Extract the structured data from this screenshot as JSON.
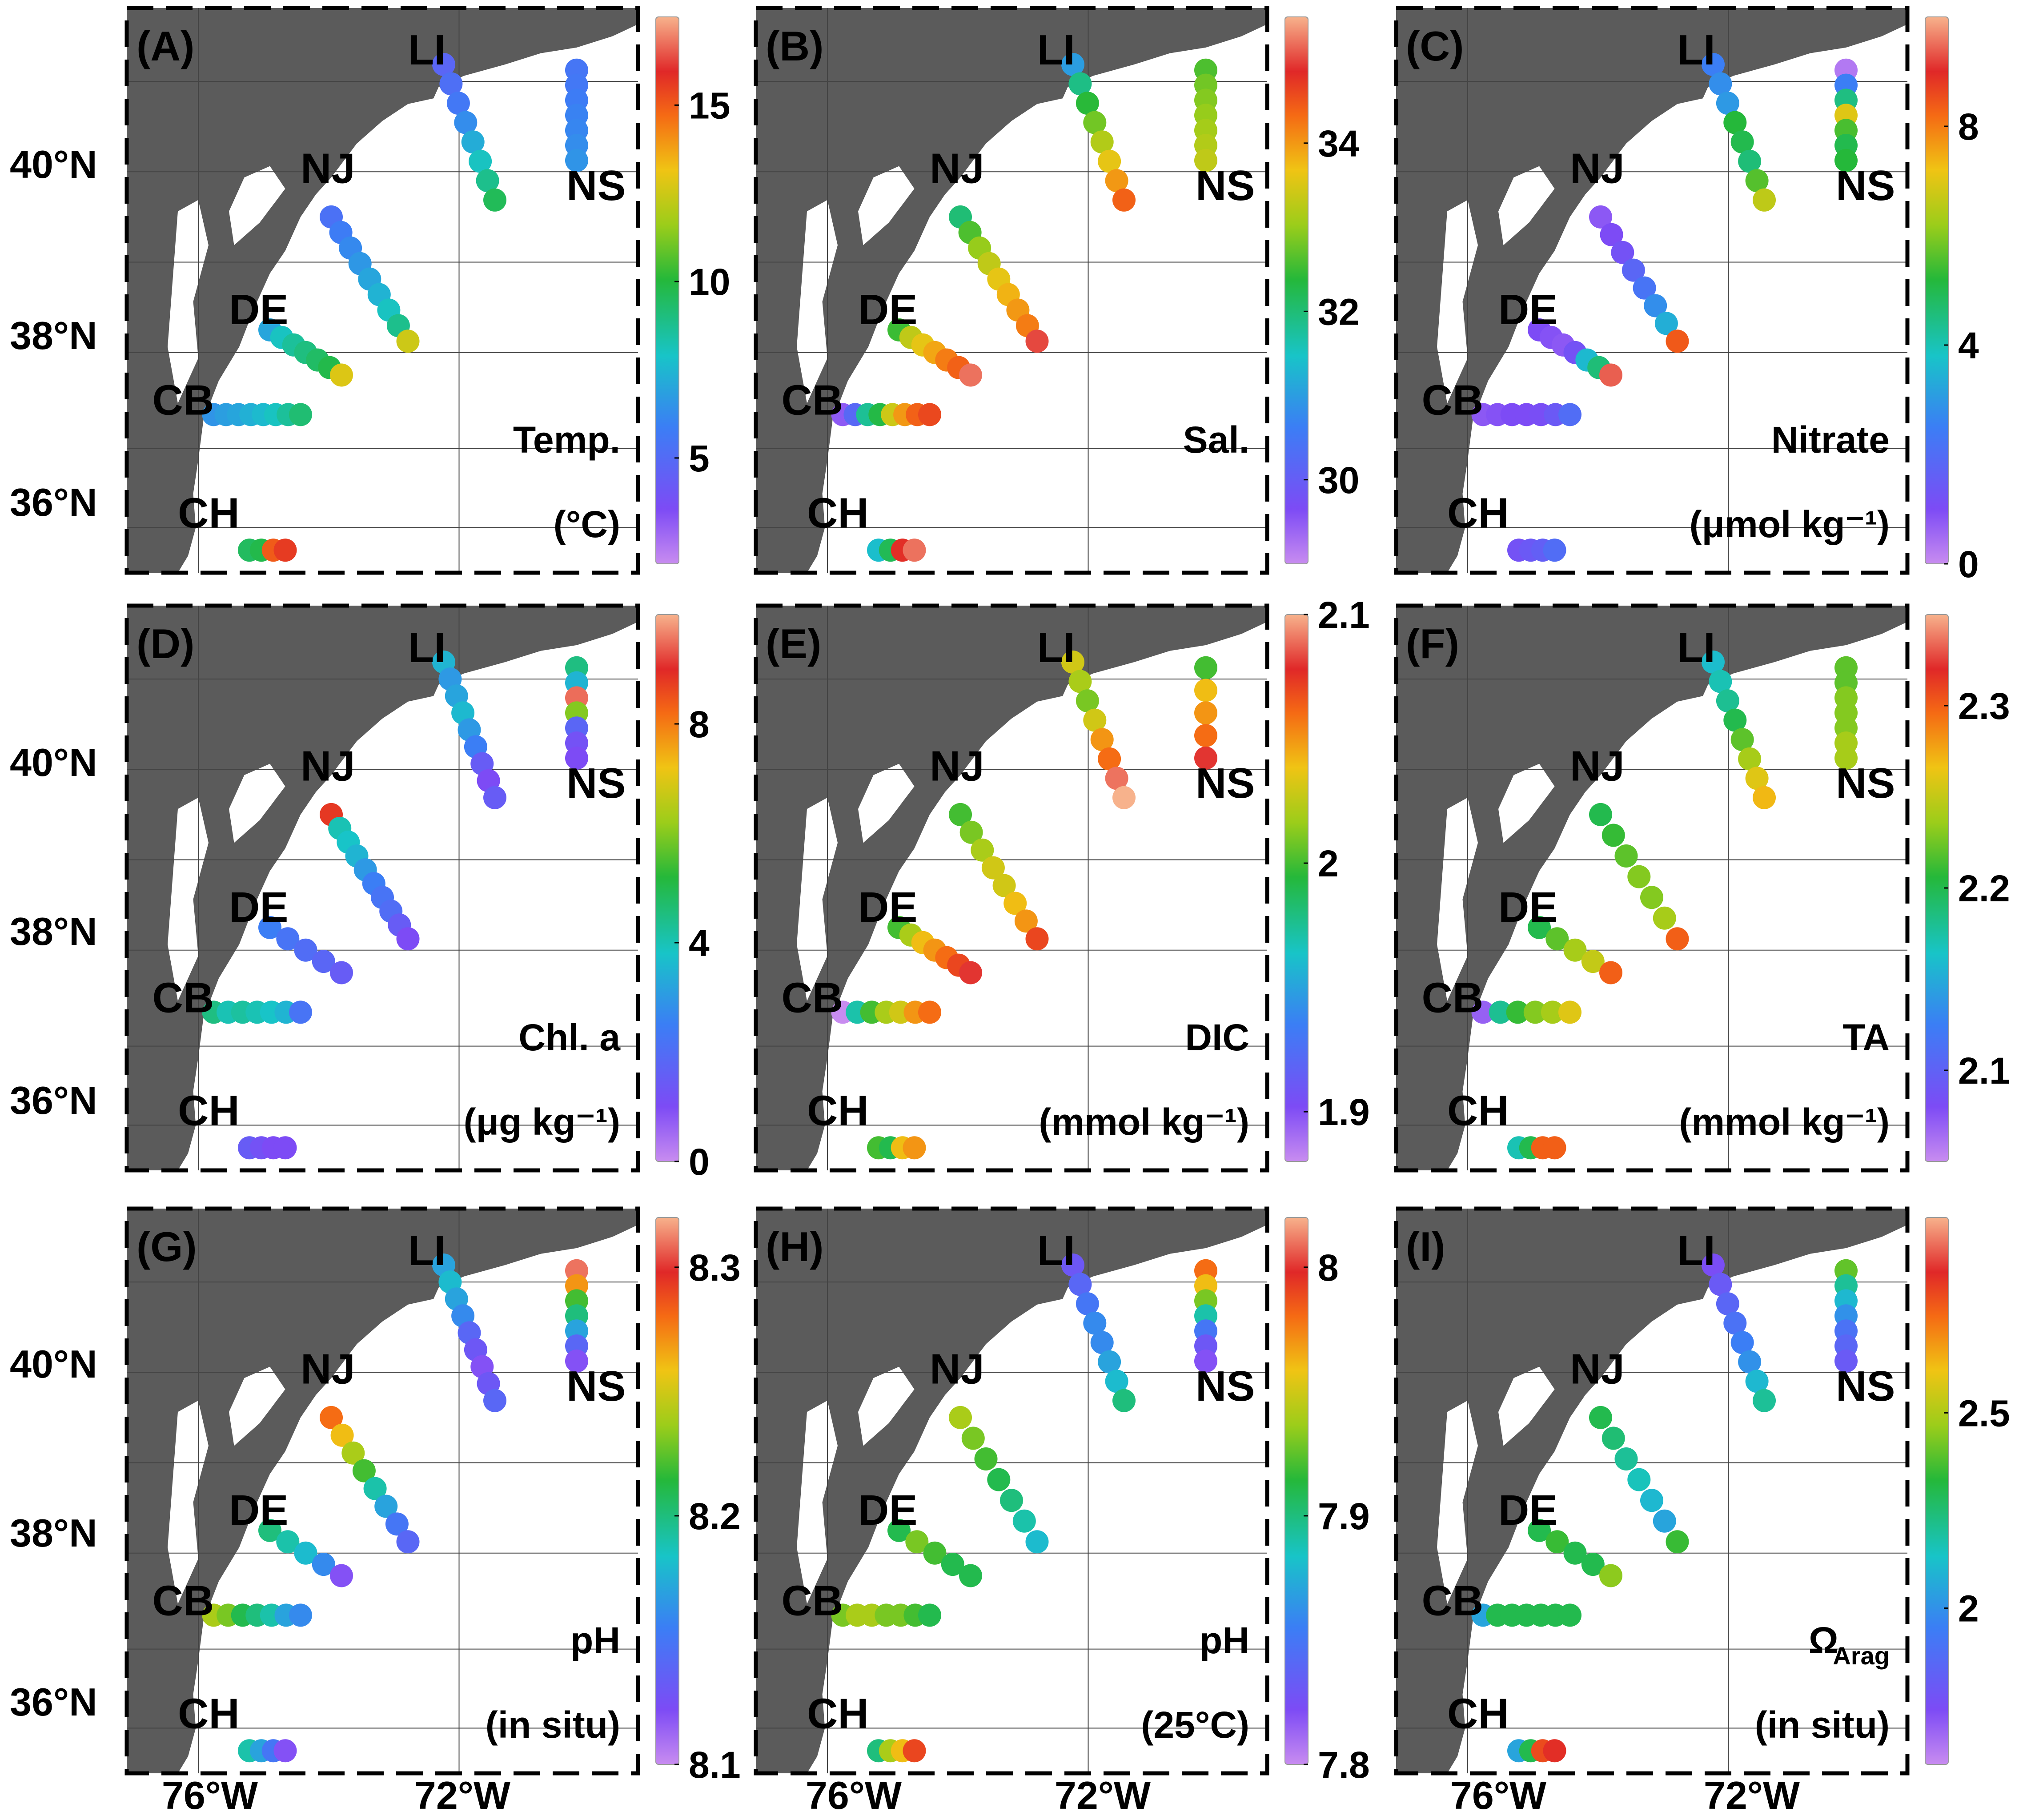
{
  "chart_data": {
    "type": "scatter",
    "x_ticks": [
      "76°W",
      "72°W"
    ],
    "y_ticks": {
      "row1": [
        "40°N",
        "38°N",
        "36°N"
      ],
      "row2": [
        "40°N",
        "38°N",
        "36°N"
      ],
      "row3": [
        "40°N",
        "38°N",
        "36°N"
      ]
    },
    "region_labels": [
      "LI",
      "NJ",
      "NS",
      "DE",
      "CB",
      "CH"
    ],
    "panels": [
      {
        "letter": "(A)",
        "label1": "Temp.",
        "label2": "(°C)",
        "colorbar": {
          "min": 2,
          "max": 17.5,
          "ticks": [
            5,
            10,
            15
          ]
        },
        "transects": [
          {
            "region": "NS",
            "values": [
              5.5,
              5.6,
              5.8,
              6.0,
              6.1,
              6.3,
              6.5
            ]
          },
          {
            "region": "LI",
            "values": [
              4.8,
              5.2,
              5.6,
              6.3,
              7.2,
              8.0,
              8.8,
              9.6
            ]
          },
          {
            "region": "NJ",
            "values": [
              5.3,
              5.8,
              6.2,
              6.6,
              7.0,
              7.4,
              8.0,
              8.8,
              12.5
            ]
          },
          {
            "region": "DE",
            "values": [
              7.0,
              8.0,
              8.6,
              9.0,
              9.4,
              9.8,
              12.8
            ]
          },
          {
            "region": "CB",
            "values": [
              6.5,
              6.8,
              7.0,
              7.3,
              7.6,
              8.0,
              8.6,
              9.2
            ]
          },
          {
            "region": "CH",
            "values": [
              9.5,
              9.8,
              15.0,
              15.6
            ]
          }
        ]
      },
      {
        "letter": "(B)",
        "label1": "Sal.",
        "label2": "",
        "colorbar": {
          "min": 29,
          "max": 35.5,
          "ticks": [
            30,
            32,
            34
          ]
        },
        "transects": [
          {
            "region": "NS",
            "values": [
              32.6,
              32.8,
              32.9,
              33.0,
              33.1,
              33.2,
              33.3
            ]
          },
          {
            "region": "LI",
            "values": [
              31.0,
              31.9,
              32.4,
              32.8,
              33.2,
              33.6,
              34.0,
              34.4
            ]
          },
          {
            "region": "NJ",
            "values": [
              32.0,
              32.6,
              33.0,
              33.3,
              33.6,
              33.8,
              34.0,
              34.2,
              35.0
            ]
          },
          {
            "region": "DE",
            "values": [
              32.5,
              33.3,
              33.6,
              33.9,
              34.2,
              34.4,
              35.2
            ]
          },
          {
            "region": "CB",
            "values": [
              29.5,
              30.2,
              31.8,
              32.3,
              33.4,
              34.0,
              34.4,
              34.6
            ]
          },
          {
            "region": "CH",
            "values": [
              31.4,
              32.2,
              34.8,
              35.2
            ]
          }
        ]
      },
      {
        "letter": "(C)",
        "label1": "Nitrate",
        "label2": "(μmol kg⁻¹)",
        "colorbar": {
          "min": 0,
          "max": 10,
          "ticks": [
            0,
            4,
            8
          ]
        },
        "transects": [
          {
            "region": "NS",
            "values": [
              0.3,
              2.5,
              4.5,
              7.0,
              5.5,
              5.0,
              5.2
            ]
          },
          {
            "region": "LI",
            "values": [
              2.5,
              2.8,
              3.0,
              5.2,
              5.0,
              4.6,
              5.6,
              6.6
            ]
          },
          {
            "region": "NJ",
            "values": [
              0.8,
              1.0,
              1.2,
              1.8,
              2.2,
              2.8,
              3.4,
              8.4
            ]
          },
          {
            "region": "DE",
            "values": [
              1.0,
              0.9,
              0.8,
              1.2,
              3.6,
              4.6,
              9.4
            ]
          },
          {
            "region": "CB",
            "values": [
              0.8,
              0.9,
              1.0,
              1.0,
              1.1,
              1.4,
              2.0
            ]
          },
          {
            "region": "CH",
            "values": [
              1.2,
              1.4,
              1.6,
              2.0
            ]
          }
        ]
      },
      {
        "letter": "(D)",
        "label1": "Chl. a",
        "label2": "(μg kg⁻¹)",
        "colorbar": {
          "min": 0,
          "max": 10,
          "ticks": [
            0,
            4,
            8
          ]
        },
        "transects": [
          {
            "region": "NS",
            "values": [
              4.5,
              3.5,
              9.5,
              6.0,
              1.8,
              1.2,
              1.0
            ]
          },
          {
            "region": "LI",
            "values": [
              3.5,
              3.0,
              3.2,
              3.6,
              3.0,
              2.5,
              1.5,
              1.0,
              1.5
            ]
          },
          {
            "region": "NJ",
            "values": [
              8.8,
              4.0,
              3.8,
              3.5,
              3.0,
              2.5,
              2.2,
              2.0,
              1.5,
              1.0
            ]
          },
          {
            "region": "DE",
            "values": [
              2.5,
              2.2,
              2.0,
              1.8,
              1.5
            ]
          },
          {
            "region": "CB",
            "values": [
              4.5,
              4.0,
              4.2,
              4.0,
              3.8,
              3.5,
              2.2
            ]
          },
          {
            "region": "CH",
            "values": [
              1.5,
              1.2,
              1.0,
              1.0
            ]
          }
        ]
      },
      {
        "letter": "(E)",
        "label1": "DIC",
        "label2": "(mmol kg⁻¹)",
        "colorbar": {
          "min": 1.88,
          "max": 2.1,
          "ticks": [
            1.9,
            2.0,
            2.1
          ]
        },
        "transects": [
          {
            "region": "NS",
            "values": [
              2.0,
              2.04,
              2.05,
              2.06,
              2.08
            ]
          },
          {
            "region": "LI",
            "values": [
              2.03,
              2.02,
              2.01,
              2.03,
              2.05,
              2.06,
              2.09,
              2.1
            ]
          },
          {
            "region": "NJ",
            "values": [
              2.0,
              2.01,
              2.02,
              2.03,
              2.03,
              2.04,
              2.05,
              2.07
            ]
          },
          {
            "region": "DE",
            "values": [
              2.0,
              2.02,
              2.04,
              2.05,
              2.06,
              2.07,
              2.08
            ]
          },
          {
            "region": "CB",
            "values": [
              1.88,
              1.97,
              2.0,
              2.02,
              2.03,
              2.05,
              2.06
            ]
          },
          {
            "region": "CH",
            "values": [
              2.0,
              1.99,
              2.04,
              2.05
            ]
          }
        ]
      },
      {
        "letter": "(F)",
        "label1": "TA",
        "label2": "(mmol kg⁻¹)",
        "colorbar": {
          "min": 2.05,
          "max": 2.35,
          "ticks": [
            2.1,
            2.2,
            2.3
          ]
        },
        "transects": [
          {
            "region": "NS",
            "values": [
              2.22,
              2.22,
              2.23,
              2.23,
              2.23,
              2.24,
              2.24
            ]
          },
          {
            "region": "LI",
            "values": [
              2.16,
              2.17,
              2.18,
              2.2,
              2.22,
              2.24,
              2.26,
              2.27
            ]
          },
          {
            "region": "NJ",
            "values": [
              2.2,
              2.21,
              2.22,
              2.23,
              2.23,
              2.24,
              2.3
            ]
          },
          {
            "region": "DE",
            "values": [
              2.2,
              2.22,
              2.24,
              2.25,
              2.3
            ]
          },
          {
            "region": "CB",
            "values": [
              2.07,
              2.18,
              2.21,
              2.23,
              2.24,
              2.26
            ]
          },
          {
            "region": "CH",
            "values": [
              2.17,
              2.2,
              2.3,
              2.3
            ]
          }
        ]
      },
      {
        "letter": "(G)",
        "label1": "pH",
        "label2": "(in situ)",
        "colorbar": {
          "min": 8.1,
          "max": 8.32,
          "ticks": [
            8.1,
            8.2,
            8.3
          ]
        },
        "transects": [
          {
            "region": "NS",
            "values": [
              8.31,
              8.27,
              8.22,
              8.2,
              8.17,
              8.14,
              8.12
            ]
          },
          {
            "region": "LI",
            "values": [
              8.17,
              8.18,
              8.17,
              8.16,
              8.14,
              8.13,
              8.12,
              8.13,
              8.14
            ]
          },
          {
            "region": "NJ",
            "values": [
              8.28,
              8.26,
              8.24,
              8.22,
              8.19,
              8.17,
              8.15,
              8.14
            ]
          },
          {
            "region": "DE",
            "values": [
              8.2,
              8.19,
              8.18,
              8.16,
              8.12
            ]
          },
          {
            "region": "CB",
            "values": [
              8.24,
              8.23,
              8.21,
              8.2,
              8.19,
              8.17,
              8.16
            ]
          },
          {
            "region": "CH",
            "values": [
              8.19,
              8.17,
              8.15,
              8.12
            ]
          }
        ]
      },
      {
        "letter": "(H)",
        "label1": "pH",
        "label2": "(25°C)",
        "colorbar": {
          "min": 7.8,
          "max": 8.02,
          "ticks": [
            7.8,
            7.9,
            8.0
          ]
        },
        "transects": [
          {
            "region": "NS",
            "values": [
              7.98,
              7.96,
              7.93,
              7.89,
              7.85,
              7.83,
              7.82
            ]
          },
          {
            "region": "LI",
            "values": [
              7.83,
              7.84,
              7.85,
              7.86,
              7.86,
              7.87,
              7.88,
              7.9
            ]
          },
          {
            "region": "NJ",
            "values": [
              7.94,
              7.93,
              7.92,
              7.91,
              7.9,
              7.89,
              7.88
            ]
          },
          {
            "region": "DE",
            "values": [
              7.91,
              7.93,
              7.92,
              7.91,
              7.91
            ]
          },
          {
            "region": "CB",
            "values": [
              7.93,
              7.94,
              7.94,
              7.93,
              7.93,
              7.92,
              7.91
            ]
          },
          {
            "region": "CH",
            "values": [
              7.9,
              7.94,
              7.96,
              7.99
            ]
          }
        ]
      },
      {
        "letter": "(I)",
        "label1": "Ω",
        "label1_sub": "Arag",
        "label2": "(in situ)",
        "colorbar": {
          "min": 1.6,
          "max": 3.0,
          "ticks": [
            2,
            2.5
          ]
        },
        "transects": [
          {
            "region": "NS",
            "values": [
              2.4,
              2.2,
              2.1,
              2.0,
              1.9,
              1.85,
              1.8
            ]
          },
          {
            "region": "LI",
            "values": [
              1.75,
              1.8,
              1.85,
              1.9,
              1.95,
              2.0,
              2.1,
              2.2
            ]
          },
          {
            "region": "NJ",
            "values": [
              2.3,
              2.25,
              2.2,
              2.15,
              2.1,
              2.05,
              2.35
            ]
          },
          {
            "region": "DE",
            "values": [
              2.3,
              2.35,
              2.3,
              2.3,
              2.45
            ]
          },
          {
            "region": "CB",
            "values": [
              2.05,
              2.3,
              2.3,
              2.3,
              2.3,
              2.3,
              2.3
            ]
          },
          {
            "region": "CH",
            "values": [
              2.05,
              2.3,
              2.8,
              2.85
            ]
          }
        ]
      }
    ]
  }
}
